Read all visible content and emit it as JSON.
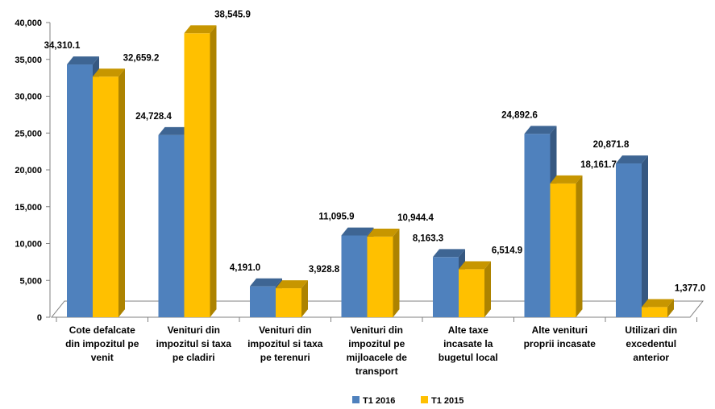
{
  "chart_data": {
    "type": "bar",
    "categories": [
      [
        "Cote defalcate",
        "din impozitul pe",
        "venit"
      ],
      [
        "Venituri din",
        "impozitul si taxa",
        "pe cladiri"
      ],
      [
        "Venituri din",
        "impozitul si taxa",
        "pe terenuri"
      ],
      [
        "Venituri din",
        "impozitul pe",
        "mijloacele de",
        "transport"
      ],
      [
        "Alte taxe",
        "incasate la",
        "bugetul local"
      ],
      [
        "Alte venituri",
        "proprii incasate"
      ],
      [
        "Utilizari din",
        "excedentul",
        "anterior"
      ]
    ],
    "series": [
      {
        "name": "T1 2016",
        "values": [
          34310.1,
          24728.4,
          4191.0,
          11095.9,
          8163.3,
          24892.6,
          20871.8
        ],
        "labels": [
          "34,310.1",
          "24,728.4",
          "4,191.0",
          "11,095.9",
          "8,163.3",
          "24,892.6",
          "20,871.8"
        ],
        "color": "#4f81bd"
      },
      {
        "name": "T1 2015",
        "values": [
          32659.2,
          38545.9,
          3928.8,
          10944.4,
          6514.9,
          18161.7,
          1377.0
        ],
        "labels": [
          "32,659.2",
          "38,545.9",
          "3,928.8",
          "10,944.4",
          "6,514.9",
          "18,161.7",
          "1,377.0"
        ],
        "color": "#ffc000"
      }
    ],
    "y_ticks": [
      "0",
      "5,000",
      "10,000",
      "15,000",
      "20,000",
      "25,000",
      "30,000",
      "35,000",
      "40,000"
    ],
    "ylim": [
      0,
      40000
    ],
    "legend_position": "bottom",
    "grid": false,
    "style": "3d-column"
  }
}
